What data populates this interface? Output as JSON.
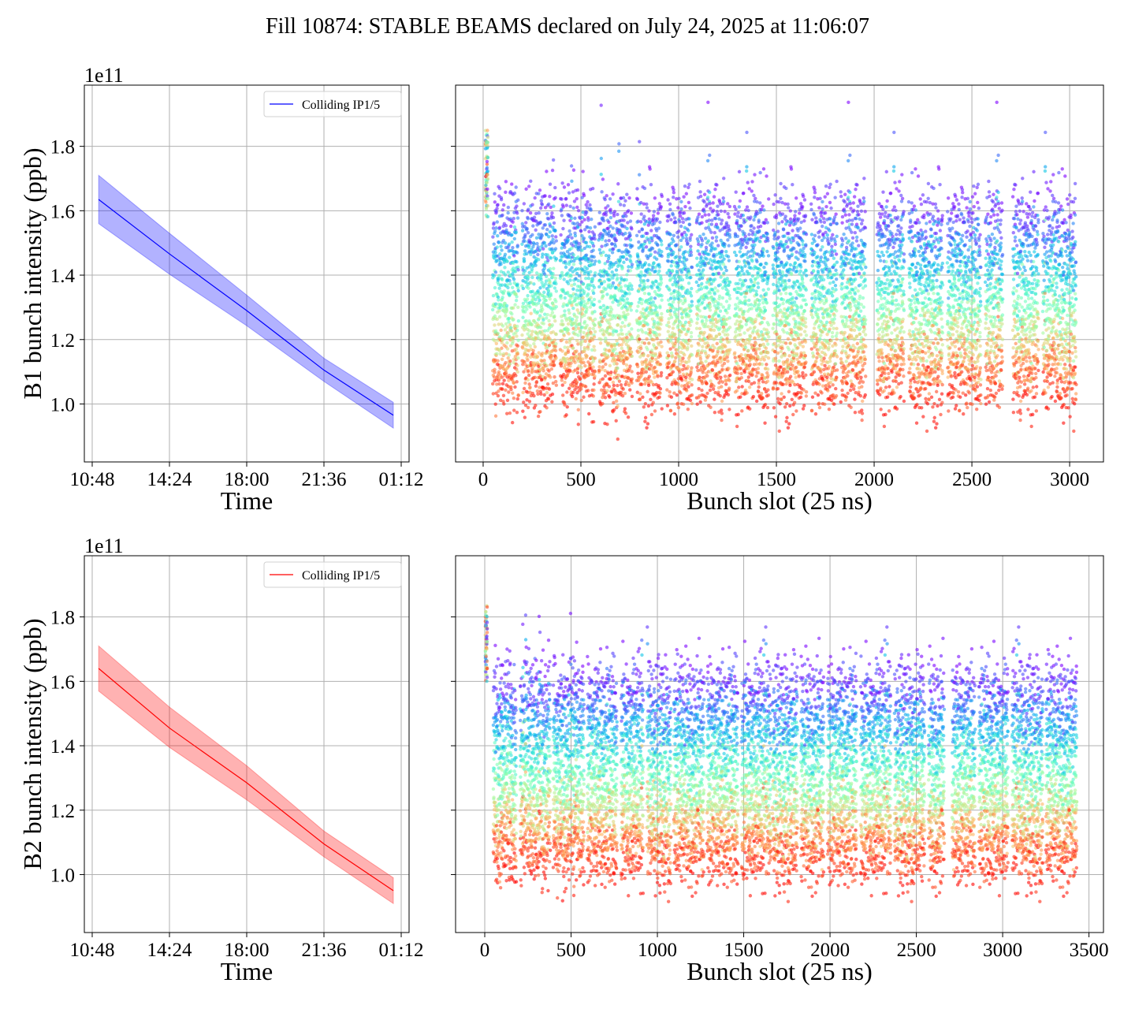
{
  "title": "Fill 10874: STABLE BEAMS declared on July 24, 2025 at 11:06:07",
  "colors": {
    "b1": "#0000ff",
    "b1_band": "#0000ff",
    "b2": "#ff0000",
    "b2_band": "#ff0000",
    "grid": "#b0b0b0",
    "colormap": "rainbow"
  },
  "chart_data": [
    {
      "type": "line",
      "panel": "top-left",
      "xlabel": "Time",
      "ylabel": "B1 bunch intensity (ppb)",
      "y_offset_label": "1e11",
      "xticks": [
        "10:48",
        "14:24",
        "18:00",
        "21:36",
        "01:12"
      ],
      "yticks": [
        "1.0",
        "1.2",
        "1.4",
        "1.6",
        "1.8"
      ],
      "xlim": [
        "10:26",
        "01:34"
      ],
      "ylim": [
        0.82,
        1.99
      ],
      "grid": true,
      "legend": {
        "placement": "upper-right",
        "entries": [
          "Colliding IP1/5"
        ]
      },
      "series": [
        {
          "name": "Colliding IP1/5",
          "x": [
            "11:06",
            "14:24",
            "18:00",
            "21:36",
            "00:50"
          ],
          "mean": [
            1.635,
            1.466,
            1.29,
            1.105,
            0.965
          ],
          "lower": [
            1.56,
            1.403,
            1.243,
            1.07,
            0.925
          ],
          "upper": [
            1.71,
            1.53,
            1.338,
            1.142,
            1.005
          ]
        }
      ]
    },
    {
      "type": "scatter",
      "panel": "top-right",
      "xlabel": "Bunch slot (25 ns)",
      "xticks": [
        "0",
        "500",
        "1000",
        "1500",
        "2000",
        "2500",
        "3000"
      ],
      "yticks": [
        "1.0",
        "1.2",
        "1.4",
        "1.6",
        "1.8"
      ],
      "xlim": [
        -141,
        3173
      ],
      "ylim": [
        0.82,
        1.99
      ],
      "grid": true,
      "color_encodes": "time (rainbow: purple = start, red = end)",
      "pilot_slots": [
        12,
        24
      ],
      "pilot_intensity_range": [
        1.58,
        1.85
      ],
      "trains": [
        [
          50,
          180
        ],
        [
          200,
          375
        ],
        [
          395,
          573
        ],
        [
          592,
          762
        ],
        [
          786,
          915
        ],
        [
          940,
          1068
        ],
        [
          1092,
          1262
        ],
        [
          1286,
          1460
        ],
        [
          1483,
          1654
        ],
        [
          1678,
          1810
        ],
        [
          1830,
          1956
        ],
        [
          2015,
          2153
        ],
        [
          2178,
          2351
        ],
        [
          2375,
          2545
        ],
        [
          2569,
          2658
        ],
        [
          2710,
          2840
        ],
        [
          2863,
          3034
        ]
      ],
      "intensity_start": {
        "mean": 1.62,
        "spread": 0.06
      },
      "intensity_end": {
        "mean": 1.03,
        "spread": 0.04
      }
    },
    {
      "type": "line",
      "panel": "bottom-left",
      "xlabel": "Time",
      "ylabel": "B2 bunch intensity (ppb)",
      "y_offset_label": "1e11",
      "xticks": [
        "10:48",
        "14:24",
        "18:00",
        "21:36",
        "01:12"
      ],
      "yticks": [
        "1.0",
        "1.2",
        "1.4",
        "1.6",
        "1.8"
      ],
      "xlim": [
        "10:26",
        "01:34"
      ],
      "ylim": [
        0.82,
        1.99
      ],
      "grid": true,
      "legend": {
        "placement": "upper-right",
        "entries": [
          "Colliding IP1/5"
        ]
      },
      "series": [
        {
          "name": "Colliding IP1/5",
          "x": [
            "11:06",
            "14:24",
            "18:00",
            "21:36",
            "00:50"
          ],
          "mean": [
            1.64,
            1.455,
            1.285,
            1.095,
            0.95
          ],
          "lower": [
            1.57,
            1.395,
            1.232,
            1.055,
            0.91
          ],
          "upper": [
            1.71,
            1.52,
            1.338,
            1.135,
            0.99
          ]
        }
      ]
    },
    {
      "type": "scatter",
      "panel": "bottom-right",
      "xlabel": "Bunch slot (25 ns)",
      "xticks": [
        "0",
        "500",
        "1000",
        "1500",
        "2000",
        "2500",
        "3000",
        "3500"
      ],
      "yticks": [
        "1.0",
        "1.2",
        "1.4",
        "1.6",
        "1.8"
      ],
      "xlim": [
        -169,
        3584
      ],
      "ylim": [
        0.82,
        1.99
      ],
      "grid": true,
      "color_encodes": "time (rainbow: purple = start, red = end)",
      "pilot_slots": [
        4,
        14
      ],
      "pilot_intensity_range": [
        1.6,
        1.84
      ],
      "trains": [
        [
          50,
          183
        ],
        [
          205,
          380
        ],
        [
          397,
          575
        ],
        [
          594,
          767
        ],
        [
          790,
          918
        ],
        [
          940,
          1078
        ],
        [
          1096,
          1270
        ],
        [
          1288,
          1466
        ],
        [
          1488,
          1658
        ],
        [
          1667,
          1812
        ],
        [
          1831,
          1963
        ],
        [
          1986,
          2155
        ],
        [
          2178,
          2352
        ],
        [
          2374,
          2548
        ],
        [
          2571,
          2662
        ],
        [
          2708,
          2840
        ],
        [
          2863,
          3032
        ],
        [
          3055,
          3233
        ],
        [
          3251,
          3429
        ]
      ],
      "intensity_start": {
        "mean": 1.62,
        "spread": 0.06
      },
      "intensity_end": {
        "mean": 1.02,
        "spread": 0.045
      }
    }
  ]
}
